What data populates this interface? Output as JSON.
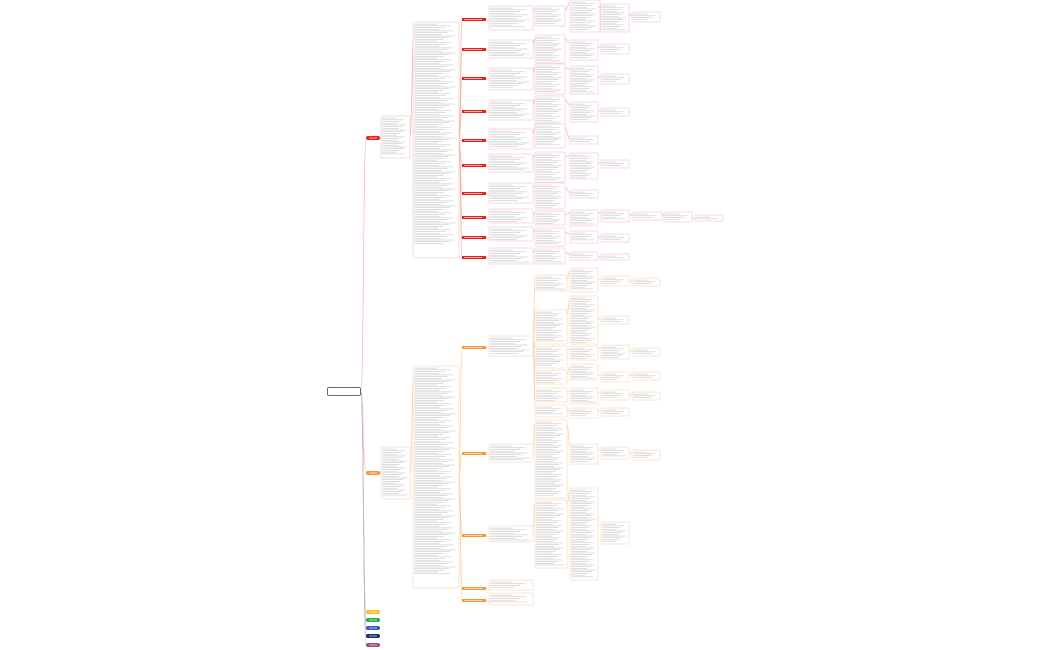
{
  "root": {
    "title": "",
    "subtitle": ""
  },
  "colors": {
    "red": "#e8201b",
    "orange": "#f29a3a",
    "yellow": "#f4c21c",
    "green": "#28a84a",
    "blue": "#2b57c8",
    "navy": "#1f2a6e",
    "purple": "#9a4c8c",
    "edge_red": "#f3b3b0",
    "edge_orange": "#f7cea3",
    "text_line": "#c8c8c8"
  },
  "branches": [
    {
      "id": "b1",
      "color": "red",
      "label": ""
    },
    {
      "id": "b2",
      "color": "orange",
      "label": ""
    },
    {
      "id": "b3",
      "color": "yellow",
      "label": ""
    },
    {
      "id": "b4",
      "color": "green",
      "label": ""
    },
    {
      "id": "b5",
      "color": "blue",
      "label": ""
    },
    {
      "id": "b6",
      "color": "navy",
      "label": ""
    },
    {
      "id": "b7",
      "color": "purple",
      "label": ""
    }
  ]
}
